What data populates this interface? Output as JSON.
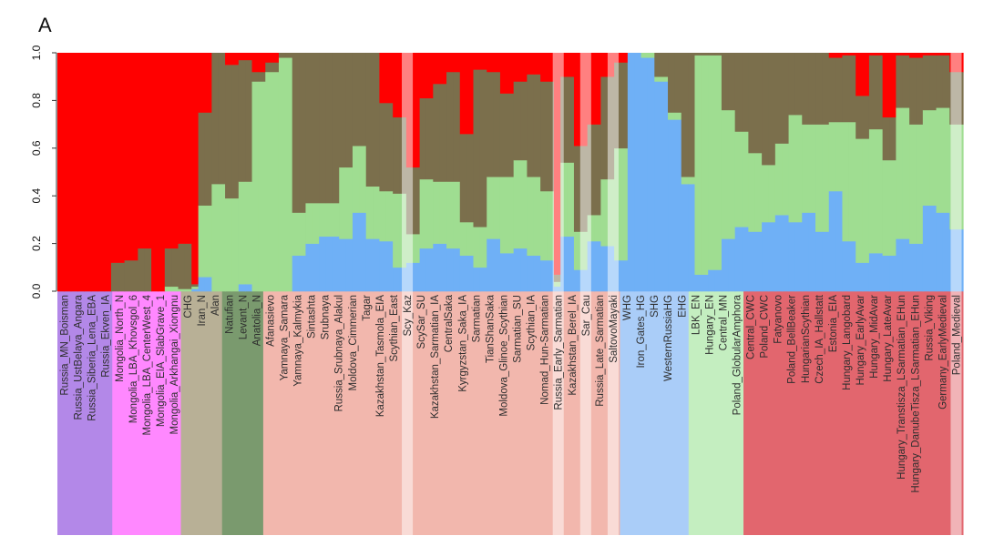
{
  "panel_label": "A",
  "colors": {
    "red": "#ff0000",
    "olive": "#7b6f4c",
    "lightgreen": "#9fdd91",
    "blue": "#6fb0f6",
    "label_text": "#2e2e2e",
    "axis": "#333333"
  },
  "chart_data": {
    "type": "stacked_bar",
    "title": "",
    "ylim": [
      0,
      1
    ],
    "y_ticks": [
      0.0,
      0.2,
      0.4,
      0.6,
      0.8,
      1.0
    ],
    "y_tick_labels": [
      "0.0",
      "0.2",
      "0.4",
      "0.6",
      "0.8",
      "1.0"
    ],
    "components": [
      "blue",
      "lightgreen",
      "olive",
      "red"
    ],
    "groups": [
      {
        "color": "#b388e8",
        "labels": [
          "Russia_MN_Boisman",
          "Russia_UstBelaya_Angara",
          "Russia_Siberia_Lena_EBA",
          "Russia_Ekven_IA"
        ]
      },
      {
        "color": "#ff88ff",
        "labels": [
          "Mongolia_North_N",
          "Mongolia_LBA_Khovsgol_6",
          "Mongolia_LBA_CenterWest_4",
          "Mongolia_EIA_SlabGrave_1",
          "Mongolia_Arkhangai_Xiongnu"
        ]
      },
      {
        "color": "#b8b096",
        "labels": [
          "CHG",
          "Iran_N",
          "Alan"
        ]
      },
      {
        "color": "#7a9a6e",
        "labels": [
          "Natufian",
          "Levant_N",
          "Anatolia_N"
        ]
      },
      {
        "color": "#f2b7ad",
        "labels": [
          "Afanasievo",
          "Yamnaya_Samara",
          "Yamnaya_Kalmykia",
          "Sintashta",
          "Srubnaya",
          "Russia_Srubnaya_Alakul",
          "Moldova_Cimmerian",
          "Tagar",
          "Kazakhstan_Tasmola_EIA",
          "Scythian_East",
          "Scy_Kaz",
          "ScySar_SU",
          "Kazakhstan_Sarmatian_IA",
          "CentralSaka",
          "Kyrgyzstan_Saka_IA",
          "Sarmatian",
          "TianShanSaka",
          "Moldova_Glinoe_Scythian",
          "Sarmatian_SU",
          "Scythian_IA",
          "Nomad_Hun-Sarmatian",
          "Russia_Early_Sarmatian",
          "Kazakhstan_Berel_IA",
          "Sar_Cau",
          "Russia_Late_Sarmatian",
          "SaltovoMayaki"
        ]
      },
      {
        "color": "#aacdf8",
        "labels": [
          "WHG",
          "Iron_Gates_HG",
          "SHG",
          "WesternRussiaHG",
          "EHG"
        ]
      },
      {
        "color": "#c4eec0",
        "labels": [
          "LBK_EN",
          "Hungary_EN",
          "Central_MN",
          "Poland_GlobularAmphora"
        ]
      },
      {
        "color": "#e2666e",
        "labels": [
          "Central_CWC",
          "Poland_CWC",
          "Fatyanovo",
          "Poland_BellBeaker",
          "HungarianScythian",
          "Czech_IA_Hallstatt",
          "Estonia_EIA",
          "Hungary_Langobard",
          "Hungary_EarlyAvar",
          "Hungary_MidAvar",
          "Hungary_LateAvar",
          "Hungary_Transtisza_LSarmatian_EHun",
          "Hungary_DanubeTisza_LSarmatian_EHun",
          "Russia_Viking",
          "Germany_EarlyMedieval",
          "Poland_Medieval"
        ]
      }
    ],
    "faded_labels": [
      "Scy_Kaz",
      "Russia_Early_Sarmatian",
      "Sar_Cau",
      "SaltovoMayaki",
      "Poland_Medieval"
    ],
    "bars": [
      {
        "values": [
          0,
          0,
          0,
          1
        ]
      },
      {
        "values": [
          0,
          0,
          0,
          1
        ]
      },
      {
        "values": [
          0,
          0,
          0,
          1
        ]
      },
      {
        "values": [
          0,
          0,
          0,
          1
        ]
      },
      {
        "values": [
          0,
          0,
          0,
          1
        ]
      },
      {
        "values": [
          0,
          0,
          0,
          1
        ]
      },
      {
        "values": [
          0,
          0,
          0,
          1
        ]
      },
      {
        "values": [
          0,
          0,
          0,
          1
        ]
      },
      {
        "values": [
          0,
          0,
          0.12,
          0.88
        ]
      },
      {
        "values": [
          0,
          0,
          0.12,
          0.88
        ]
      },
      {
        "values": [
          0,
          0,
          0.13,
          0.87
        ]
      },
      {
        "values": [
          0,
          0,
          0.13,
          0.87
        ]
      },
      {
        "values": [
          0,
          0,
          0.18,
          0.82
        ]
      },
      {
        "values": [
          0,
          0,
          0.18,
          0.82
        ]
      },
      {
        "values": [
          0,
          0,
          0,
          1
        ]
      },
      {
        "values": [
          0,
          0,
          0,
          1
        ]
      },
      {
        "values": [
          0,
          0.02,
          0.16,
          0.82
        ]
      },
      {
        "values": [
          0,
          0.02,
          0.16,
          0.82
        ]
      },
      {
        "values": [
          0,
          0.01,
          0.19,
          0.8
        ]
      },
      {
        "values": [
          0,
          0.01,
          0.19,
          0.8
        ]
      },
      {
        "values": [
          0.01,
          0.01,
          0.01,
          0.97
        ]
      },
      {
        "values": [
          0.06,
          0.3,
          0.39,
          0.25
        ]
      },
      {
        "values": [
          0.06,
          0.3,
          0.39,
          0.25
        ]
      },
      {
        "values": [
          0,
          0.45,
          0.55,
          0
        ]
      },
      {
        "values": [
          0,
          0.45,
          0.55,
          0
        ]
      },
      {
        "values": [
          0,
          0.39,
          0.56,
          0.05
        ]
      },
      {
        "values": [
          0,
          0.39,
          0.56,
          0.05
        ]
      },
      {
        "values": [
          0.03,
          0.43,
          0.51,
          0.03
        ]
      },
      {
        "values": [
          0.03,
          0.43,
          0.51,
          0.03
        ]
      },
      {
        "values": [
          0,
          0.88,
          0.04,
          0.08
        ]
      },
      {
        "values": [
          0,
          0.88,
          0.04,
          0.08
        ]
      },
      {
        "values": [
          0,
          0.92,
          0.04,
          0.04
        ]
      },
      {
        "values": [
          0,
          0.92,
          0.04,
          0.04
        ]
      },
      {
        "values": [
          0,
          0.98,
          0.02,
          0
        ]
      },
      {
        "values": [
          0,
          0.98,
          0.02,
          0
        ]
      },
      {
        "values": [
          0.15,
          0.18,
          0.67,
          0
        ]
      },
      {
        "values": [
          0.15,
          0.18,
          0.67,
          0
        ]
      },
      {
        "values": [
          0.2,
          0.17,
          0.63,
          0
        ]
      },
      {
        "values": [
          0.2,
          0.17,
          0.63,
          0
        ]
      },
      {
        "values": [
          0.23,
          0.14,
          0.63,
          0
        ]
      },
      {
        "values": [
          0.23,
          0.14,
          0.63,
          0
        ]
      },
      {
        "values": [
          0.23,
          0.14,
          0.63,
          0
        ]
      },
      {
        "values": [
          0.22,
          0.3,
          0.48,
          0
        ]
      },
      {
        "values": [
          0.22,
          0.3,
          0.48,
          0
        ]
      },
      {
        "values": [
          0.33,
          0.28,
          0.39,
          0
        ]
      },
      {
        "values": [
          0.33,
          0.28,
          0.39,
          0
        ]
      },
      {
        "values": [
          0.22,
          0.22,
          0.56,
          0
        ]
      },
      {
        "values": [
          0.22,
          0.22,
          0.56,
          0
        ]
      },
      {
        "values": [
          0.21,
          0.21,
          0.37,
          0.21
        ]
      },
      {
        "values": [
          0.21,
          0.21,
          0.37,
          0.21
        ]
      },
      {
        "values": [
          0.1,
          0.31,
          0.32,
          0.27
        ]
      },
      {
        "values": [
          0.1,
          0.31,
          0.32,
          0.27
        ]
      },
      {
        "values": [
          0.12,
          0.12,
          0.28,
          0.48
        ]
      },
      {
        "values": [
          0.12,
          0.12,
          0.28,
          0.48
        ]
      },
      {
        "values": [
          0.18,
          0.29,
          0.34,
          0.19
        ]
      },
      {
        "values": [
          0.18,
          0.29,
          0.34,
          0.19
        ]
      },
      {
        "values": [
          0.2,
          0.26,
          0.41,
          0.13
        ]
      },
      {
        "values": [
          0.2,
          0.26,
          0.41,
          0.13
        ]
      },
      {
        "values": [
          0.18,
          0.28,
          0.46,
          0.08
        ]
      },
      {
        "values": [
          0.18,
          0.28,
          0.46,
          0.08
        ]
      },
      {
        "values": [
          0.15,
          0.14,
          0.37,
          0.34
        ]
      },
      {
        "values": [
          0.15,
          0.14,
          0.37,
          0.34
        ]
      },
      {
        "values": [
          0.1,
          0.17,
          0.66,
          0.07
        ]
      },
      {
        "values": [
          0.1,
          0.17,
          0.66,
          0.07
        ]
      },
      {
        "values": [
          0.22,
          0.26,
          0.44,
          0.08
        ]
      },
      {
        "values": [
          0.22,
          0.26,
          0.44,
          0.08
        ]
      },
      {
        "values": [
          0.16,
          0.32,
          0.35,
          0.17
        ]
      },
      {
        "values": [
          0.16,
          0.32,
          0.35,
          0.17
        ]
      },
      {
        "values": [
          0.18,
          0.37,
          0.33,
          0.12
        ]
      },
      {
        "values": [
          0.18,
          0.37,
          0.33,
          0.12
        ]
      },
      {
        "values": [
          0.15,
          0.33,
          0.43,
          0.09
        ]
      },
      {
        "values": [
          0.15,
          0.33,
          0.43,
          0.09
        ]
      },
      {
        "values": [
          0.13,
          0.29,
          0.46,
          0.12
        ]
      },
      {
        "values": [
          0.13,
          0.29,
          0.46,
          0.12
        ]
      },
      {
        "values": [
          0.02,
          0.02,
          0.03,
          0.93
        ]
      },
      {
        "values": [
          0.23,
          0.31,
          0.36,
          0.1
        ]
      },
      {
        "values": [
          0.23,
          0.31,
          0.36,
          0.1
        ]
      },
      {
        "values": [
          0.09,
          0.16,
          0.36,
          0.39
        ]
      },
      {
        "values": [
          0.09,
          0.16,
          0.36,
          0.39
        ]
      },
      {
        "values": [
          0.21,
          0.11,
          0.38,
          0.3
        ]
      },
      {
        "values": [
          0.21,
          0.11,
          0.38,
          0.3
        ]
      },
      {
        "values": [
          0.19,
          0.28,
          0.43,
          0.1
        ]
      },
      {
        "values": [
          0.19,
          0.28,
          0.43,
          0.1
        ]
      },
      {
        "values": [
          0.13,
          0.47,
          0.36,
          0.04
        ]
      },
      {
        "values": [
          0.13,
          0.47,
          0.36,
          0.04
        ]
      },
      {
        "values": [
          1.0,
          0,
          0,
          0
        ]
      },
      {
        "values": [
          1.0,
          0,
          0,
          0
        ]
      },
      {
        "values": [
          0.98,
          0.02,
          0,
          0
        ]
      },
      {
        "values": [
          0.98,
          0.02,
          0,
          0
        ]
      },
      {
        "values": [
          0.88,
          0.02,
          0.1,
          0
        ]
      },
      {
        "values": [
          0.88,
          0.02,
          0.1,
          0
        ]
      },
      {
        "values": [
          0.72,
          0.03,
          0.25,
          0
        ]
      },
      {
        "values": [
          0.72,
          0.03,
          0.25,
          0
        ]
      },
      {
        "values": [
          0.45,
          0.03,
          0.52,
          0
        ]
      },
      {
        "values": [
          0.45,
          0.03,
          0.52,
          0
        ]
      },
      {
        "values": [
          0.07,
          0.92,
          0.01,
          0
        ]
      },
      {
        "values": [
          0.07,
          0.92,
          0.01,
          0
        ]
      },
      {
        "values": [
          0.09,
          0.9,
          0.01,
          0
        ]
      },
      {
        "values": [
          0.09,
          0.9,
          0.01,
          0
        ]
      },
      {
        "values": [
          0.22,
          0.54,
          0.24,
          0
        ]
      },
      {
        "values": [
          0.22,
          0.54,
          0.24,
          0
        ]
      },
      {
        "values": [
          0.27,
          0.4,
          0.33,
          0
        ]
      },
      {
        "values": [
          0.27,
          0.4,
          0.33,
          0
        ]
      },
      {
        "values": [
          0.25,
          0.33,
          0.42,
          0
        ]
      },
      {
        "values": [
          0.25,
          0.33,
          0.42,
          0
        ]
      },
      {
        "values": [
          0.29,
          0.24,
          0.47,
          0
        ]
      },
      {
        "values": [
          0.29,
          0.24,
          0.47,
          0
        ]
      },
      {
        "values": [
          0.32,
          0.3,
          0.38,
          0
        ]
      },
      {
        "values": [
          0.32,
          0.3,
          0.38,
          0
        ]
      },
      {
        "values": [
          0.29,
          0.45,
          0.26,
          0
        ]
      },
      {
        "values": [
          0.29,
          0.45,
          0.26,
          0
        ]
      },
      {
        "values": [
          0.33,
          0.37,
          0.3,
          0
        ]
      },
      {
        "values": [
          0.33,
          0.37,
          0.3,
          0
        ]
      },
      {
        "values": [
          0.25,
          0.45,
          0.3,
          0
        ]
      },
      {
        "values": [
          0.25,
          0.45,
          0.3,
          0
        ]
      },
      {
        "values": [
          0.42,
          0.29,
          0.27,
          0.02
        ]
      },
      {
        "values": [
          0.42,
          0.29,
          0.27,
          0.02
        ]
      },
      {
        "values": [
          0.21,
          0.5,
          0.28,
          0.01
        ]
      },
      {
        "values": [
          0.21,
          0.5,
          0.28,
          0.01
        ]
      },
      {
        "values": [
          0.12,
          0.52,
          0.18,
          0.18
        ]
      },
      {
        "values": [
          0.12,
          0.52,
          0.18,
          0.18
        ]
      },
      {
        "values": [
          0.16,
          0.52,
          0.31,
          0.01
        ]
      },
      {
        "values": [
          0.16,
          0.52,
          0.31,
          0.01
        ]
      },
      {
        "values": [
          0.15,
          0.4,
          0.18,
          0.27
        ]
      },
      {
        "values": [
          0.15,
          0.4,
          0.18,
          0.27
        ]
      },
      {
        "values": [
          0.22,
          0.55,
          0.22,
          0.01
        ]
      },
      {
        "values": [
          0.22,
          0.55,
          0.22,
          0.01
        ]
      },
      {
        "values": [
          0.2,
          0.5,
          0.28,
          0.02
        ]
      },
      {
        "values": [
          0.2,
          0.5,
          0.28,
          0.02
        ]
      },
      {
        "values": [
          0.36,
          0.4,
          0.23,
          0.01
        ]
      },
      {
        "values": [
          0.36,
          0.4,
          0.23,
          0.01
        ]
      },
      {
        "values": [
          0.33,
          0.44,
          0.22,
          0.01
        ]
      },
      {
        "values": [
          0.33,
          0.44,
          0.22,
          0.01
        ]
      },
      {
        "values": [
          0.26,
          0.44,
          0.22,
          0.08
        ]
      },
      {
        "values": [
          0.26,
          0.44,
          0.22,
          0.08
        ]
      }
    ]
  }
}
